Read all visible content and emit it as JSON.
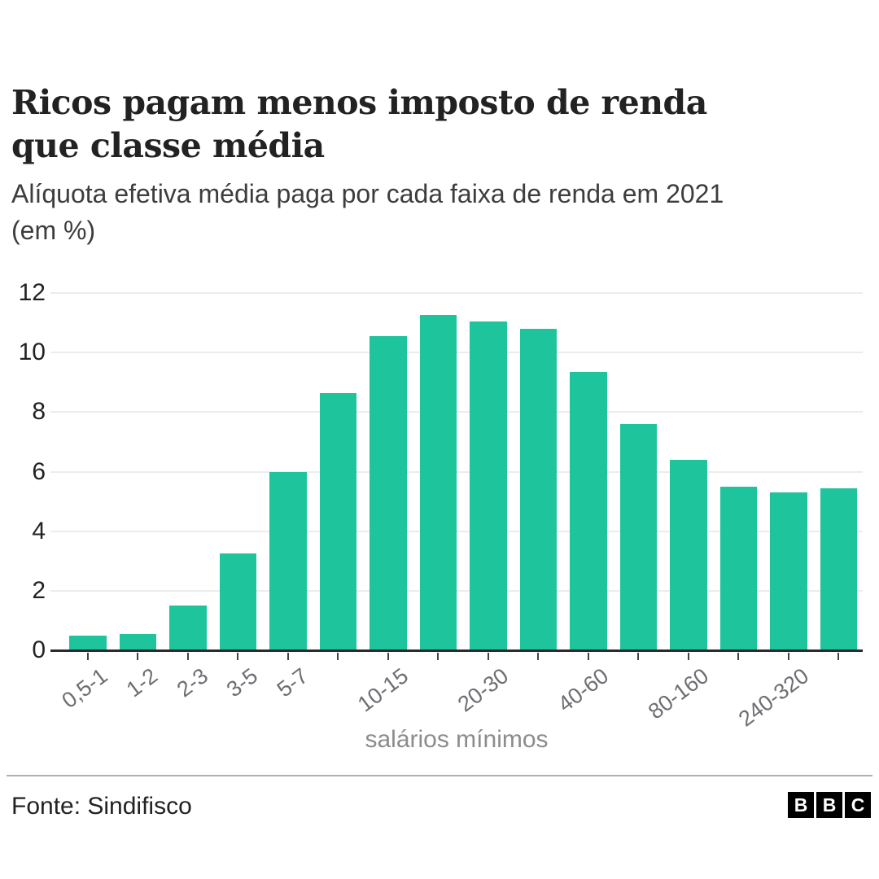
{
  "header": {
    "title": "Ricos pagam menos imposto de renda que classe média",
    "subtitle": "Alíquota efetiva média paga por cada faixa de renda em 2021 (em %)"
  },
  "chart_data": {
    "type": "bar",
    "title": "Ricos pagam menos imposto de renda que classe média",
    "subtitle": "Alíquota efetiva média paga por cada faixa de renda em 2021 (em %)",
    "categories": [
      "0,5-1",
      "1-2",
      "2-3",
      "3-5",
      "5-7",
      "",
      "10-15",
      "",
      "20-30",
      "",
      "40-60",
      "",
      "80-160",
      "",
      "240-320",
      ""
    ],
    "values": [
      0.5,
      0.55,
      1.5,
      3.25,
      6.0,
      8.65,
      10.55,
      11.25,
      11.05,
      10.8,
      9.35,
      7.6,
      6.4,
      5.5,
      5.3,
      5.45
    ],
    "xlabel": "salários mínimos",
    "ylabel": "",
    "y_ticks": [
      0,
      2,
      4,
      6,
      8,
      10,
      12
    ],
    "ylim": [
      0,
      12
    ],
    "grid": "horizontal",
    "legend": "none",
    "bar_color": "#1ec49c",
    "gridline_color": "#ececec",
    "axis_color": "#2b2b2b",
    "x_label_color": "#6e6e73",
    "y_label_color": "#222222"
  },
  "footer": {
    "source": "Fonte: Sindifisco",
    "logo_letters": [
      "B",
      "B",
      "C"
    ],
    "logo_bg": "#000000",
    "logo_fg": "#ffffff"
  }
}
